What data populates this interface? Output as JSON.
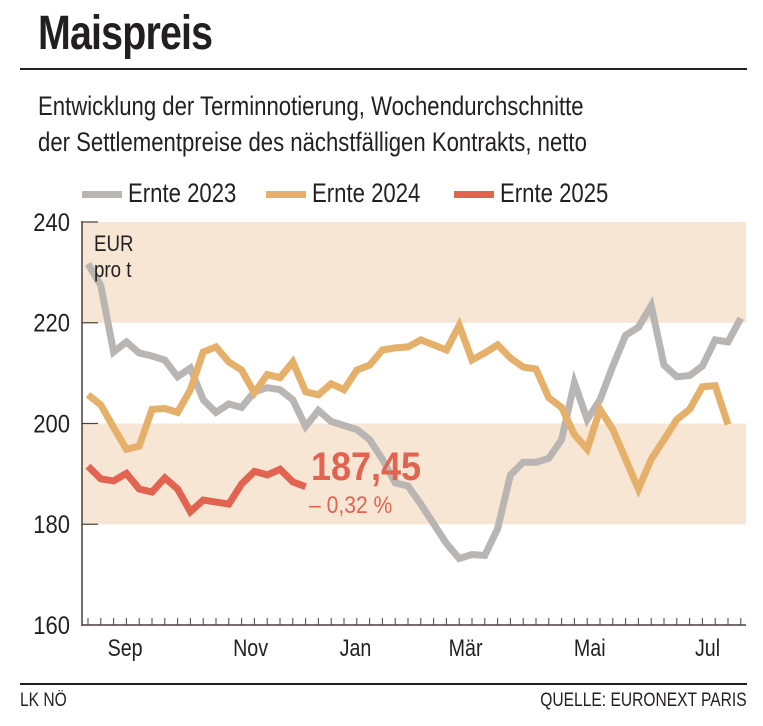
{
  "header": {
    "title": "Maispreis",
    "subtitle_line1": "Entwicklung der Terminnotierung, Wochendurchschnitte",
    "subtitle_line2": "der Settlementpreise des nächstfälligen Kontrakts, netto"
  },
  "footer": {
    "left": "LK NÖ",
    "right": "QUELLE: EURONEXT PARIS"
  },
  "chart_data": {
    "type": "line",
    "title": "Maispreis",
    "ylabel": "EUR pro t",
    "ylabel_line1": "EUR",
    "ylabel_line2": "pro t",
    "ylim": [
      160,
      240
    ],
    "yticks": [
      160,
      180,
      200,
      220,
      240
    ],
    "ytick_labels": [
      "160",
      "180",
      "200",
      "220",
      "240"
    ],
    "x_unit": "week",
    "xlim": [
      0,
      51
    ],
    "xticks": [
      {
        "label": "Sep",
        "x": 2.9
      },
      {
        "label": "Nov",
        "x": 12.7
      },
      {
        "label": "Jan",
        "x": 20.9
      },
      {
        "label": "Mär",
        "x": 29.5
      },
      {
        "label": "Mai",
        "x": 39.2
      },
      {
        "label": "Jul",
        "x": 48.4
      }
    ],
    "shaded_bands": [
      [
        180,
        200
      ],
      [
        220,
        240
      ]
    ],
    "band_color": "#f7e6d4",
    "legend_position": "top",
    "series": [
      {
        "name": "Ernte 2023",
        "color": "#b9b5b2",
        "values": [
          231.7,
          227.4,
          214.2,
          216.2,
          214.0,
          213.4,
          212.6,
          209.3,
          211.0,
          204.7,
          202.2,
          203.9,
          203.2,
          206.3,
          207.1,
          206.7,
          204.7,
          199.4,
          202.6,
          200.4,
          199.6,
          198.8,
          196.8,
          192.9,
          188.2,
          187.6,
          184.0,
          180.1,
          176.2,
          173.2,
          174.0,
          173.8,
          179.1,
          189.8,
          192.3,
          192.3,
          193.1,
          196.8,
          208.1,
          200.8,
          204.7,
          211.4,
          217.5,
          219.1,
          223.4,
          211.6,
          209.3,
          209.5,
          211.4,
          216.6,
          216.2,
          220.9
        ]
      },
      {
        "name": "Ernte 2024",
        "color": "#e5b06a",
        "values": [
          205.7,
          203.7,
          199.2,
          194.9,
          195.5,
          202.8,
          203.0,
          202.2,
          206.7,
          214.2,
          215.2,
          212.2,
          210.6,
          206.1,
          209.7,
          209.1,
          212.2,
          206.3,
          205.7,
          207.9,
          206.7,
          210.6,
          211.6,
          214.6,
          215.0,
          215.2,
          216.6,
          215.6,
          214.6,
          219.5,
          212.6,
          214.0,
          215.6,
          213.0,
          211.2,
          210.8,
          205.1,
          203.2,
          197.8,
          194.9,
          202.8,
          198.8,
          192.9,
          187.0,
          192.9,
          196.8,
          200.8,
          202.8,
          207.3,
          207.5,
          199.8
        ]
      },
      {
        "name": "Ernte 2025",
        "color": "#e2634f",
        "values": [
          191.5,
          189.0,
          188.6,
          190.1,
          187.0,
          186.4,
          189.2,
          187.0,
          182.5,
          184.8,
          184.4,
          184.0,
          188.0,
          190.5,
          189.8,
          190.9,
          188.4,
          187.45
        ]
      }
    ],
    "annotations": {
      "last_value": "187,45",
      "change": "– 0,32 %"
    }
  }
}
